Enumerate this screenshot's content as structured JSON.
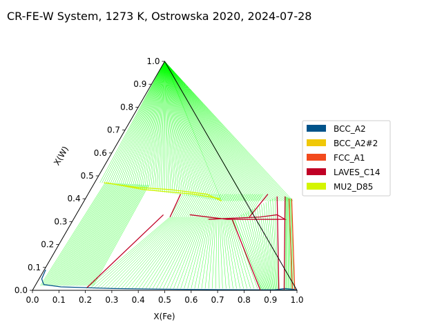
{
  "chart_data": {
    "type": "ternary",
    "title": "CR-FE-W System, 1273 K, Ostrowska 2020, 2024-07-28",
    "xlabel": "X(Fe)",
    "ylabel": "X(W)",
    "xlim": [
      0.0,
      1.0
    ],
    "ylim": [
      0.0,
      1.0
    ],
    "x_ticks": [
      "0.0",
      "0.1",
      "0.2",
      "0.3",
      "0.4",
      "0.5",
      "0.6",
      "0.7",
      "0.8",
      "0.9",
      "1.0"
    ],
    "y_ticks": [
      "0.0",
      "0.1",
      "0.2",
      "0.3",
      "0.4",
      "0.5",
      "0.6",
      "0.7",
      "0.8",
      "0.9",
      "1.0"
    ],
    "legend_position": "right",
    "legend": [
      {
        "name": "BCC_A2",
        "color": "#00538a"
      },
      {
        "name": "BCC_A2#2",
        "color": "#f0c808"
      },
      {
        "name": "FCC_A1",
        "color": "#f24a1d"
      },
      {
        "name": "LAVES_C14",
        "color": "#c00025"
      },
      {
        "name": "MU2_D85",
        "color": "#d4f500"
      }
    ],
    "tie_line_color": "#00ff00",
    "phase_boundaries": [
      {
        "phase": "BCC_A2",
        "color": "#00538a",
        "points": [
          [
            0.005,
            0.09
          ],
          [
            0.01,
            0.05
          ],
          [
            0.03,
            0.025
          ],
          [
            0.1,
            0.015
          ],
          [
            0.3,
            0.008
          ],
          [
            0.5,
            0.005
          ],
          [
            0.7,
            0.003
          ],
          [
            0.9,
            0.002
          ],
          [
            0.995,
            0.001
          ]
        ]
      },
      {
        "phase": "BCC_A2",
        "color": "#00538a",
        "points": [
          [
            0.9,
            0.0
          ],
          [
            0.95,
            0.008
          ],
          [
            0.99,
            0.004
          ],
          [
            1.0,
            0.0
          ]
        ]
      },
      {
        "phase": "MU2_D85",
        "color": "#d4f500",
        "points": [
          [
            0.035,
            0.47
          ],
          [
            0.17,
            0.45
          ],
          [
            0.3,
            0.44
          ],
          [
            0.45,
            0.42
          ],
          [
            0.52,
            0.39
          ]
        ]
      },
      {
        "phase": "MU2_D85",
        "color": "#d4f500",
        "points": [
          [
            0.045,
            0.47
          ],
          [
            0.2,
            0.44
          ],
          [
            0.4,
            0.42
          ],
          [
            0.51,
            0.4
          ]
        ]
      },
      {
        "phase": "LAVES_C14",
        "color": "#c00025",
        "points": [
          [
            0.51,
            0.31
          ],
          [
            0.6,
            0.315
          ],
          [
            0.7,
            0.32
          ],
          [
            0.76,
            0.33
          ],
          [
            0.8,
            0.31
          ],
          [
            0.73,
            0.31
          ],
          [
            0.58,
            0.31
          ],
          [
            0.43,
            0.33
          ]
        ]
      },
      {
        "phase": "LAVES_C14",
        "color": "#c00025",
        "points": [
          [
            0.35,
            0.42
          ],
          [
            0.36,
            0.32
          ]
        ]
      },
      {
        "phase": "LAVES_C14",
        "color": "#c00025",
        "points": [
          [
            0.68,
            0.42
          ],
          [
            0.66,
            0.32
          ]
        ]
      },
      {
        "phase": "LAVES_C14",
        "color": "#c00025",
        "points": [
          [
            0.2,
            0.012
          ],
          [
            0.33,
            0.33
          ]
        ]
      },
      {
        "phase": "LAVES_C14",
        "color": "#c00025",
        "points": [
          [
            0.6,
            0.31
          ],
          [
            0.86,
            0.002
          ]
        ]
      },
      {
        "phase": "LAVES_C14",
        "color": "#c00025",
        "points": [
          [
            0.72,
            0.41
          ],
          [
            0.93,
            0.003
          ]
        ]
      },
      {
        "phase": "LAVES_C14",
        "color": "#c00025",
        "points": [
          [
            0.75,
            0.41
          ],
          [
            0.95,
            0.003
          ]
        ]
      },
      {
        "phase": "FCC_A1",
        "color": "#f24a1d",
        "points": [
          [
            0.77,
            0.4
          ],
          [
            0.98,
            0.005
          ]
        ]
      },
      {
        "phase": "FCC_A1",
        "color": "#f24a1d",
        "points": [
          [
            0.78,
            0.4
          ],
          [
            0.99,
            0.003
          ]
        ]
      }
    ]
  }
}
